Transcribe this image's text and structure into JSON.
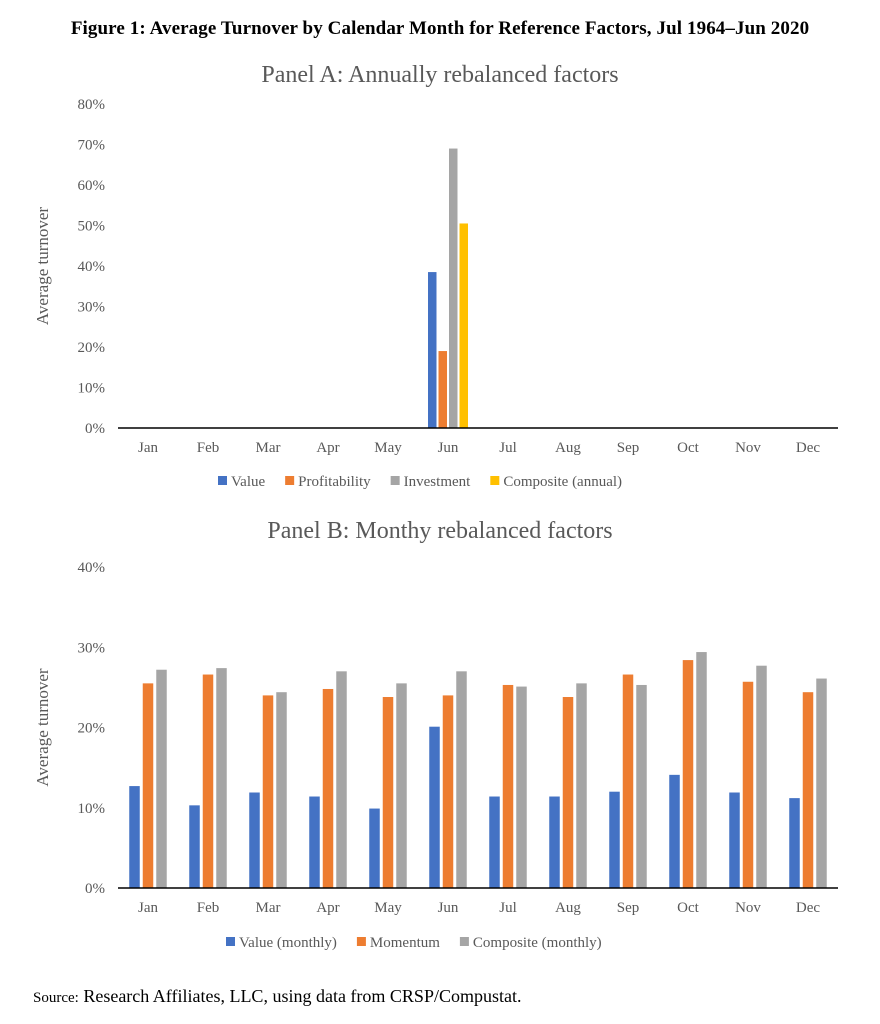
{
  "figure_title": "Figure 1: Average Turnover by Calendar Month for Reference Factors, Jul 1964–Jun 2020",
  "source_label": "Source:",
  "source_text": "Research Affiliates, LLC, using data from CRSP/Compustat.",
  "chart_data": [
    {
      "type": "bar",
      "title": "Panel A: Annually rebalanced factors",
      "xlabel": "",
      "ylabel": "Average turnover",
      "ylim": [
        0,
        80
      ],
      "yticks": [
        "0%",
        "10%",
        "20%",
        "30%",
        "40%",
        "50%",
        "60%",
        "70%",
        "80%"
      ],
      "grid": false,
      "legend": "bottom",
      "categories": [
        "Jan",
        "Feb",
        "Mar",
        "Apr",
        "May",
        "Jun",
        "Jul",
        "Aug",
        "Sep",
        "Oct",
        "Nov",
        "Dec"
      ],
      "series": [
        {
          "name": "Value",
          "color": "#4472C4",
          "values": [
            0,
            0,
            0,
            0,
            0,
            38.5,
            0,
            0,
            0,
            0,
            0,
            0
          ]
        },
        {
          "name": "Profitability",
          "color": "#ED7D31",
          "values": [
            0,
            0,
            0,
            0,
            0,
            19,
            0,
            0,
            0,
            0,
            0,
            0
          ]
        },
        {
          "name": "Investment",
          "color": "#A5A5A5",
          "values": [
            0,
            0,
            0,
            0,
            0,
            69,
            0,
            0,
            0,
            0,
            0,
            0
          ]
        },
        {
          "name": "Composite (annual)",
          "color": "#FFC000",
          "values": [
            0,
            0,
            0,
            0,
            0,
            50.5,
            0,
            0,
            0,
            0,
            0,
            0
          ]
        }
      ]
    },
    {
      "type": "bar",
      "title": "Panel B: Monthy rebalanced factors",
      "xlabel": "",
      "ylabel": "Average turnover",
      "ylim": [
        0,
        40
      ],
      "yticks": [
        "0%",
        "10%",
        "20%",
        "30%",
        "40%"
      ],
      "grid": false,
      "legend": "bottom",
      "categories": [
        "Jan",
        "Feb",
        "Mar",
        "Apr",
        "May",
        "Jun",
        "Jul",
        "Aug",
        "Sep",
        "Oct",
        "Nov",
        "Dec"
      ],
      "series": [
        {
          "name": "Value (monthly)",
          "color": "#4472C4",
          "values": [
            12.7,
            10.3,
            11.9,
            11.4,
            9.9,
            20.1,
            11.4,
            11.4,
            12.0,
            14.1,
            11.9,
            11.2
          ]
        },
        {
          "name": "Momentum",
          "color": "#ED7D31",
          "values": [
            25.5,
            26.6,
            24.0,
            24.8,
            23.8,
            24.0,
            25.3,
            23.8,
            26.6,
            28.4,
            25.7,
            24.4
          ]
        },
        {
          "name": "Composite (monthly)",
          "color": "#A5A5A5",
          "values": [
            27.2,
            27.4,
            24.4,
            27.0,
            25.5,
            27.0,
            25.1,
            25.5,
            25.3,
            29.4,
            27.7,
            26.1
          ]
        }
      ]
    }
  ]
}
